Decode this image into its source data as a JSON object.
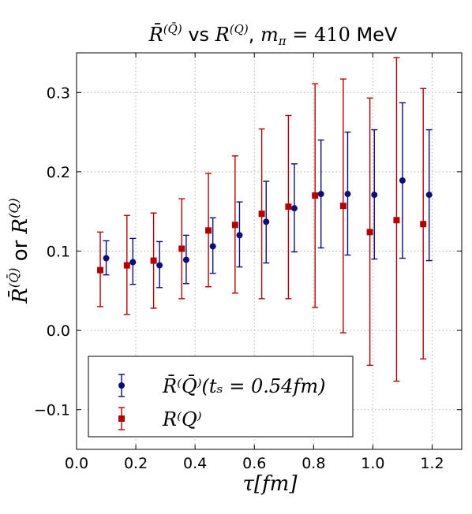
{
  "chart_data": {
    "type": "scatter",
    "title": "R̄⁽Q̄⁾ vs R⁽Q⁾, mπ = 410 MeV",
    "xlabel": "τ [fm]",
    "ylabel": "R̄⁽Q̄⁾ or R⁽Q⁾",
    "xlim": [
      0.0,
      1.3
    ],
    "ylim": [
      -0.15,
      0.35
    ],
    "x_ticks": [
      "0.0",
      "0.2",
      "0.4",
      "0.6",
      "0.8",
      "1.0",
      "1.2"
    ],
    "y_ticks": [
      "−0.1",
      "0.0",
      "0.1",
      "0.2",
      "0.3"
    ],
    "grid": true,
    "legend_position": "lower-left",
    "series": [
      {
        "name": "R̄⁽Q̄⁾(tₛ = 0.54fm)",
        "color": "#0d0d78",
        "marker": "circle",
        "points": [
          {
            "x": 0.1,
            "y": 0.091,
            "lo": 0.07,
            "hi": 0.113
          },
          {
            "x": 0.19,
            "y": 0.086,
            "lo": 0.058,
            "hi": 0.116
          },
          {
            "x": 0.28,
            "y": 0.082,
            "lo": 0.054,
            "hi": 0.112
          },
          {
            "x": 0.37,
            "y": 0.089,
            "lo": 0.059,
            "hi": 0.12
          },
          {
            "x": 0.46,
            "y": 0.106,
            "lo": 0.072,
            "hi": 0.142
          },
          {
            "x": 0.55,
            "y": 0.12,
            "lo": 0.08,
            "hi": 0.162
          },
          {
            "x": 0.64,
            "y": 0.137,
            "lo": 0.085,
            "hi": 0.188
          },
          {
            "x": 0.735,
            "y": 0.154,
            "lo": 0.099,
            "hi": 0.21
          },
          {
            "x": 0.825,
            "y": 0.172,
            "lo": 0.104,
            "hi": 0.24
          },
          {
            "x": 0.915,
            "y": 0.172,
            "lo": 0.095,
            "hi": 0.25
          },
          {
            "x": 1.005,
            "y": 0.171,
            "lo": 0.09,
            "hi": 0.253
          },
          {
            "x": 1.1,
            "y": 0.189,
            "lo": 0.091,
            "hi": 0.287
          },
          {
            "x": 1.19,
            "y": 0.171,
            "lo": 0.088,
            "hi": 0.253
          }
        ]
      },
      {
        "name": "R⁽Q⁾",
        "color": "#b30000",
        "marker": "square",
        "points": [
          {
            "x": 0.08,
            "y": 0.076,
            "lo": 0.03,
            "hi": 0.124
          },
          {
            "x": 0.17,
            "y": 0.082,
            "lo": 0.02,
            "hi": 0.145
          },
          {
            "x": 0.26,
            "y": 0.088,
            "lo": 0.028,
            "hi": 0.148
          },
          {
            "x": 0.355,
            "y": 0.103,
            "lo": 0.04,
            "hi": 0.166
          },
          {
            "x": 0.445,
            "y": 0.126,
            "lo": 0.055,
            "hi": 0.198
          },
          {
            "x": 0.535,
            "y": 0.133,
            "lo": 0.047,
            "hi": 0.22
          },
          {
            "x": 0.625,
            "y": 0.147,
            "lo": 0.04,
            "hi": 0.254
          },
          {
            "x": 0.715,
            "y": 0.156,
            "lo": 0.04,
            "hi": 0.271
          },
          {
            "x": 0.805,
            "y": 0.17,
            "lo": 0.029,
            "hi": 0.311
          },
          {
            "x": 0.9,
            "y": 0.157,
            "lo": -0.003,
            "hi": 0.317
          },
          {
            "x": 0.99,
            "y": 0.124,
            "lo": -0.044,
            "hi": 0.293
          },
          {
            "x": 1.08,
            "y": 0.139,
            "lo": -0.064,
            "hi": 0.344
          },
          {
            "x": 1.17,
            "y": 0.134,
            "lo": -0.036,
            "hi": 0.305
          }
        ]
      }
    ]
  }
}
